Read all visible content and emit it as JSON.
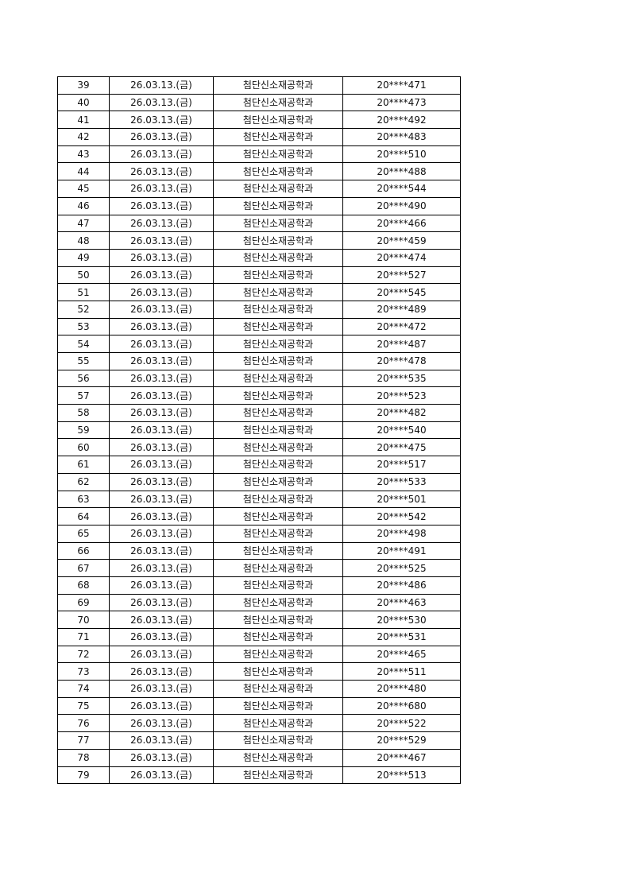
{
  "table": {
    "rows": [
      {
        "no": "39",
        "date": "26.03.13.(금)",
        "dept": "첨단신소재공학과",
        "id": "20****471"
      },
      {
        "no": "40",
        "date": "26.03.13.(금)",
        "dept": "첨단신소재공학과",
        "id": "20****473"
      },
      {
        "no": "41",
        "date": "26.03.13.(금)",
        "dept": "첨단신소재공학과",
        "id": "20****492"
      },
      {
        "no": "42",
        "date": "26.03.13.(금)",
        "dept": "첨단신소재공학과",
        "id": "20****483"
      },
      {
        "no": "43",
        "date": "26.03.13.(금)",
        "dept": "첨단신소재공학과",
        "id": "20****510"
      },
      {
        "no": "44",
        "date": "26.03.13.(금)",
        "dept": "첨단신소재공학과",
        "id": "20****488"
      },
      {
        "no": "45",
        "date": "26.03.13.(금)",
        "dept": "첨단신소재공학과",
        "id": "20****544"
      },
      {
        "no": "46",
        "date": "26.03.13.(금)",
        "dept": "첨단신소재공학과",
        "id": "20****490"
      },
      {
        "no": "47",
        "date": "26.03.13.(금)",
        "dept": "첨단신소재공학과",
        "id": "20****466"
      },
      {
        "no": "48",
        "date": "26.03.13.(금)",
        "dept": "첨단신소재공학과",
        "id": "20****459"
      },
      {
        "no": "49",
        "date": "26.03.13.(금)",
        "dept": "첨단신소재공학과",
        "id": "20****474"
      },
      {
        "no": "50",
        "date": "26.03.13.(금)",
        "dept": "첨단신소재공학과",
        "id": "20****527"
      },
      {
        "no": "51",
        "date": "26.03.13.(금)",
        "dept": "첨단신소재공학과",
        "id": "20****545"
      },
      {
        "no": "52",
        "date": "26.03.13.(금)",
        "dept": "첨단신소재공학과",
        "id": "20****489"
      },
      {
        "no": "53",
        "date": "26.03.13.(금)",
        "dept": "첨단신소재공학과",
        "id": "20****472"
      },
      {
        "no": "54",
        "date": "26.03.13.(금)",
        "dept": "첨단신소재공학과",
        "id": "20****487"
      },
      {
        "no": "55",
        "date": "26.03.13.(금)",
        "dept": "첨단신소재공학과",
        "id": "20****478"
      },
      {
        "no": "56",
        "date": "26.03.13.(금)",
        "dept": "첨단신소재공학과",
        "id": "20****535"
      },
      {
        "no": "57",
        "date": "26.03.13.(금)",
        "dept": "첨단신소재공학과",
        "id": "20****523"
      },
      {
        "no": "58",
        "date": "26.03.13.(금)",
        "dept": "첨단신소재공학과",
        "id": "20****482"
      },
      {
        "no": "59",
        "date": "26.03.13.(금)",
        "dept": "첨단신소재공학과",
        "id": "20****540"
      },
      {
        "no": "60",
        "date": "26.03.13.(금)",
        "dept": "첨단신소재공학과",
        "id": "20****475"
      },
      {
        "no": "61",
        "date": "26.03.13.(금)",
        "dept": "첨단신소재공학과",
        "id": "20****517"
      },
      {
        "no": "62",
        "date": "26.03.13.(금)",
        "dept": "첨단신소재공학과",
        "id": "20****533"
      },
      {
        "no": "63",
        "date": "26.03.13.(금)",
        "dept": "첨단신소재공학과",
        "id": "20****501"
      },
      {
        "no": "64",
        "date": "26.03.13.(금)",
        "dept": "첨단신소재공학과",
        "id": "20****542"
      },
      {
        "no": "65",
        "date": "26.03.13.(금)",
        "dept": "첨단신소재공학과",
        "id": "20****498"
      },
      {
        "no": "66",
        "date": "26.03.13.(금)",
        "dept": "첨단신소재공학과",
        "id": "20****491"
      },
      {
        "no": "67",
        "date": "26.03.13.(금)",
        "dept": "첨단신소재공학과",
        "id": "20****525"
      },
      {
        "no": "68",
        "date": "26.03.13.(금)",
        "dept": "첨단신소재공학과",
        "id": "20****486"
      },
      {
        "no": "69",
        "date": "26.03.13.(금)",
        "dept": "첨단신소재공학과",
        "id": "20****463"
      },
      {
        "no": "70",
        "date": "26.03.13.(금)",
        "dept": "첨단신소재공학과",
        "id": "20****530"
      },
      {
        "no": "71",
        "date": "26.03.13.(금)",
        "dept": "첨단신소재공학과",
        "id": "20****531"
      },
      {
        "no": "72",
        "date": "26.03.13.(금)",
        "dept": "첨단신소재공학과",
        "id": "20****465"
      },
      {
        "no": "73",
        "date": "26.03.13.(금)",
        "dept": "첨단신소재공학과",
        "id": "20****511"
      },
      {
        "no": "74",
        "date": "26.03.13.(금)",
        "dept": "첨단신소재공학과",
        "id": "20****480"
      },
      {
        "no": "75",
        "date": "26.03.13.(금)",
        "dept": "첨단신소재공학과",
        "id": "20****680"
      },
      {
        "no": "76",
        "date": "26.03.13.(금)",
        "dept": "첨단신소재공학과",
        "id": "20****522"
      },
      {
        "no": "77",
        "date": "26.03.13.(금)",
        "dept": "첨단신소재공학과",
        "id": "20****529"
      },
      {
        "no": "78",
        "date": "26.03.13.(금)",
        "dept": "첨단신소재공학과",
        "id": "20****467"
      },
      {
        "no": "79",
        "date": "26.03.13.(금)",
        "dept": "첨단신소재공학과",
        "id": "20****513"
      }
    ]
  }
}
